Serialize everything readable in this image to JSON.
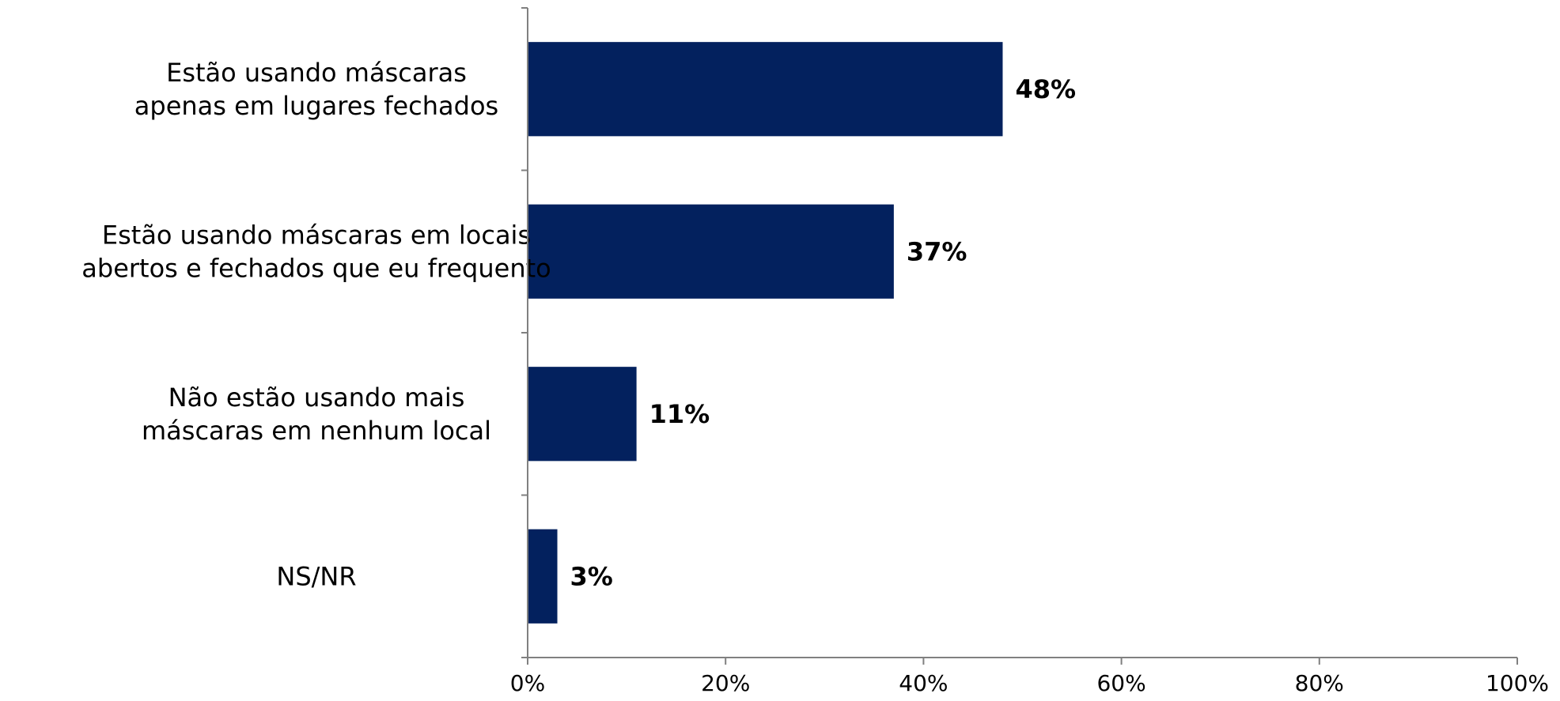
{
  "chart_data": {
    "type": "bar",
    "orientation": "horizontal",
    "categories": [
      [
        "Estão usando máscaras",
        "apenas em lugares fechados"
      ],
      [
        "Estão usando máscaras em locais",
        "abertos e fechados que eu frequento"
      ],
      [
        "Não estão usando mais",
        "máscaras em nenhum local"
      ],
      [
        "NS/NR"
      ]
    ],
    "values": [
      48,
      37,
      11,
      3
    ],
    "value_labels": [
      "48%",
      "37%",
      "11%",
      "3%"
    ],
    "xlim": [
      0,
      100
    ],
    "x_ticks": [
      0,
      20,
      40,
      60,
      80,
      100
    ],
    "x_tick_labels": [
      "0%",
      "20%",
      "40%",
      "60%",
      "80%",
      "100%"
    ],
    "grid": false,
    "legend": "none",
    "colors": {
      "bar": "#03215E"
    }
  }
}
